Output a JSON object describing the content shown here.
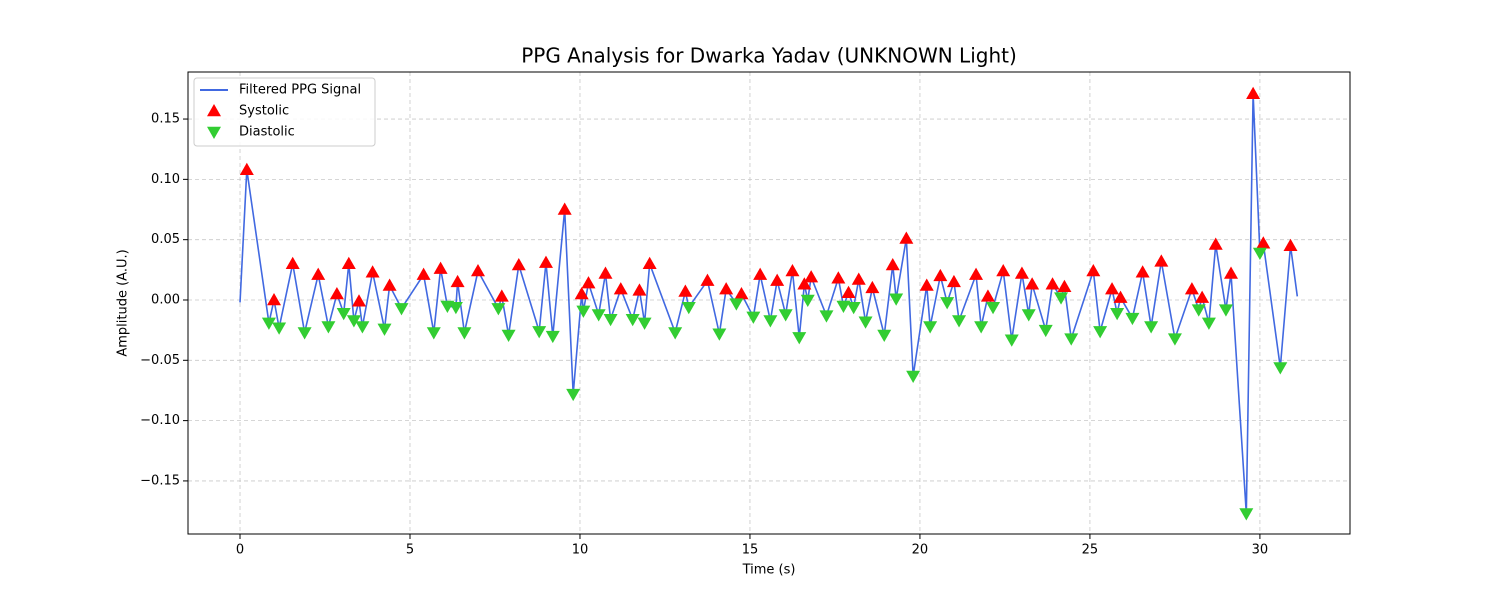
{
  "chart_data": {
    "type": "line",
    "title": "PPG Analysis for Dwarka Yadav (UNKNOWN Light)",
    "x_label": "Time (s)",
    "y_label": "Amplitude (A.U.)",
    "xlim": [
      -1.53,
      32.65
    ],
    "ylim": [
      -0.194,
      0.189
    ],
    "xticks": [
      0,
      5,
      10,
      15,
      20,
      25,
      30
    ],
    "yticks": [
      {
        "value": -0.15,
        "label": "−0.15"
      },
      {
        "value": -0.1,
        "label": "−0.10"
      },
      {
        "value": -0.05,
        "label": "−0.05"
      },
      {
        "value": 0,
        "label": "0.00"
      },
      {
        "value": 0.05,
        "label": "0.05"
      },
      {
        "value": 0.1,
        "label": "0.10"
      },
      {
        "value": 0.15,
        "label": "0.15"
      }
    ],
    "grid": true,
    "legend": "upper left",
    "series": [
      {
        "name": "Filtered PPG Signal",
        "type": "line",
        "color": "#4169e1",
        "x": [
          0,
          0.2,
          0.85,
          1.0,
          1.15,
          1.55,
          1.9,
          2.3,
          2.6,
          2.85,
          3.05,
          3.2,
          3.35,
          3.5,
          3.6,
          3.9,
          4.25,
          4.4,
          4.75,
          5.4,
          5.7,
          5.9,
          6.1,
          6.35,
          6.4,
          6.6,
          7.0,
          7.6,
          7.7,
          7.9,
          8.2,
          8.8,
          9.0,
          9.2,
          9.55,
          9.8,
          10.05,
          10.1,
          10.25,
          10.55,
          10.75,
          10.9,
          11.2,
          11.55,
          11.75,
          11.9,
          12.05,
          12.8,
          13.1,
          13.2,
          13.75,
          14.1,
          14.3,
          14.6,
          14.75,
          15.1,
          15.3,
          15.6,
          15.8,
          16.05,
          16.25,
          16.45,
          16.6,
          16.7,
          16.8,
          17.25,
          17.6,
          17.75,
          17.9,
          18.05,
          18.2,
          18.4,
          18.6,
          18.95,
          19.2,
          19.3,
          19.6,
          19.8,
          20.2,
          20.3,
          20.6,
          20.8,
          21.0,
          21.15,
          21.65,
          21.8,
          22.0,
          22.15,
          22.45,
          22.7,
          23.0,
          23.2,
          23.3,
          23.7,
          23.9,
          24.15,
          24.25,
          24.45,
          25.1,
          25.3,
          25.65,
          25.8,
          25.9,
          26.25,
          26.55,
          26.8,
          27.1,
          27.5,
          28.0,
          28.2,
          28.3,
          28.5,
          28.7,
          29.0,
          29.15,
          29.6,
          29.8,
          30.0,
          30.1,
          30.6,
          30.9,
          31.1
        ],
        "y": [
          -0.002,
          0.108,
          -0.019,
          0.0,
          -0.023,
          0.03,
          -0.027,
          0.021,
          -0.022,
          0.005,
          -0.011,
          0.03,
          -0.017,
          -0.001,
          -0.022,
          0.023,
          -0.024,
          0.012,
          -0.007,
          0.021,
          -0.027,
          0.026,
          -0.005,
          -0.006,
          0.015,
          -0.027,
          0.024,
          -0.007,
          0.003,
          -0.029,
          0.029,
          -0.026,
          0.031,
          -0.03,
          0.075,
          -0.078,
          0.005,
          -0.009,
          0.014,
          -0.012,
          0.022,
          -0.016,
          0.009,
          -0.016,
          0.008,
          -0.019,
          0.03,
          -0.027,
          0.007,
          -0.006,
          0.016,
          -0.028,
          0.009,
          -0.003,
          0.005,
          -0.014,
          0.021,
          -0.017,
          0.016,
          -0.012,
          0.024,
          -0.031,
          0.013,
          0.0,
          0.019,
          -0.013,
          0.018,
          -0.005,
          0.006,
          -0.006,
          0.017,
          -0.018,
          0.01,
          -0.029,
          0.029,
          0.001,
          0.051,
          -0.063,
          0.012,
          -0.022,
          0.02,
          -0.002,
          0.015,
          -0.017,
          0.021,
          -0.022,
          0.003,
          -0.006,
          0.024,
          -0.033,
          0.022,
          -0.012,
          0.013,
          -0.025,
          0.013,
          0.002,
          0.011,
          -0.032,
          0.024,
          -0.026,
          0.009,
          -0.011,
          0.002,
          -0.015,
          0.023,
          -0.022,
          0.032,
          -0.032,
          0.009,
          -0.008,
          0.002,
          -0.019,
          0.046,
          -0.008,
          0.022,
          -0.177,
          0.171,
          0.039,
          0.047,
          -0.056,
          0.045,
          0.003
        ]
      },
      {
        "name": "Systolic",
        "type": "scatter",
        "marker": "triangle-up",
        "color": "#ff0000",
        "x": [
          0.2,
          1.0,
          1.55,
          2.3,
          2.85,
          3.2,
          3.5,
          3.9,
          4.4,
          5.4,
          5.9,
          6.4,
          7.0,
          7.7,
          8.2,
          9.0,
          9.55,
          10.05,
          10.25,
          10.75,
          11.2,
          11.75,
          12.05,
          13.1,
          13.75,
          14.3,
          14.75,
          15.3,
          15.8,
          16.25,
          16.6,
          16.8,
          17.6,
          17.9,
          18.2,
          18.6,
          19.2,
          19.6,
          20.2,
          20.6,
          21.0,
          21.65,
          22.0,
          22.45,
          23.0,
          23.3,
          23.9,
          24.25,
          25.1,
          25.65,
          25.9,
          26.55,
          27.1,
          28.0,
          28.3,
          28.7,
          29.15,
          29.8,
          30.1,
          30.9
        ],
        "y": [
          0.108,
          0.0,
          0.03,
          0.021,
          0.005,
          0.03,
          -0.001,
          0.023,
          0.012,
          0.021,
          0.026,
          0.015,
          0.024,
          0.003,
          0.029,
          0.031,
          0.075,
          0.005,
          0.014,
          0.022,
          0.009,
          0.008,
          0.03,
          0.007,
          0.016,
          0.009,
          0.005,
          0.021,
          0.016,
          0.024,
          0.013,
          0.019,
          0.018,
          0.006,
          0.017,
          0.01,
          0.029,
          0.051,
          0.012,
          0.02,
          0.015,
          0.021,
          0.003,
          0.024,
          0.022,
          0.013,
          0.013,
          0.011,
          0.024,
          0.009,
          0.002,
          0.023,
          0.032,
          0.009,
          0.002,
          0.046,
          0.022,
          0.171,
          0.047,
          0.045
        ]
      },
      {
        "name": "Diastolic",
        "type": "scatter",
        "marker": "triangle-down",
        "color": "#32cd32",
        "x": [
          0.85,
          1.15,
          1.9,
          2.6,
          3.05,
          3.35,
          3.6,
          4.25,
          4.75,
          5.7,
          6.1,
          6.35,
          6.6,
          7.6,
          7.9,
          8.8,
          9.2,
          9.8,
          10.1,
          10.55,
          10.9,
          11.55,
          11.9,
          12.8,
          13.2,
          14.1,
          14.6,
          15.1,
          15.6,
          16.05,
          16.45,
          16.7,
          17.25,
          17.75,
          18.05,
          18.4,
          18.95,
          19.3,
          19.8,
          20.3,
          20.8,
          21.15,
          21.8,
          22.15,
          22.7,
          23.2,
          23.7,
          24.15,
          24.45,
          25.3,
          25.8,
          26.25,
          26.8,
          27.5,
          28.2,
          28.5,
          29.0,
          29.6,
          30.0,
          30.6
        ],
        "y": [
          -0.019,
          -0.023,
          -0.027,
          -0.022,
          -0.011,
          -0.017,
          -0.022,
          -0.024,
          -0.007,
          -0.027,
          -0.005,
          -0.006,
          -0.027,
          -0.007,
          -0.029,
          -0.026,
          -0.03,
          -0.078,
          -0.009,
          -0.012,
          -0.016,
          -0.016,
          -0.019,
          -0.027,
          -0.006,
          -0.028,
          -0.003,
          -0.014,
          -0.017,
          -0.012,
          -0.031,
          0.0,
          -0.013,
          -0.005,
          -0.006,
          -0.018,
          -0.029,
          0.001,
          -0.063,
          -0.022,
          -0.002,
          -0.017,
          -0.022,
          -0.006,
          -0.033,
          -0.012,
          -0.025,
          0.002,
          -0.032,
          -0.026,
          -0.011,
          -0.015,
          -0.022,
          -0.032,
          -0.008,
          -0.019,
          -0.008,
          -0.177,
          0.039,
          -0.056
        ]
      }
    ]
  }
}
